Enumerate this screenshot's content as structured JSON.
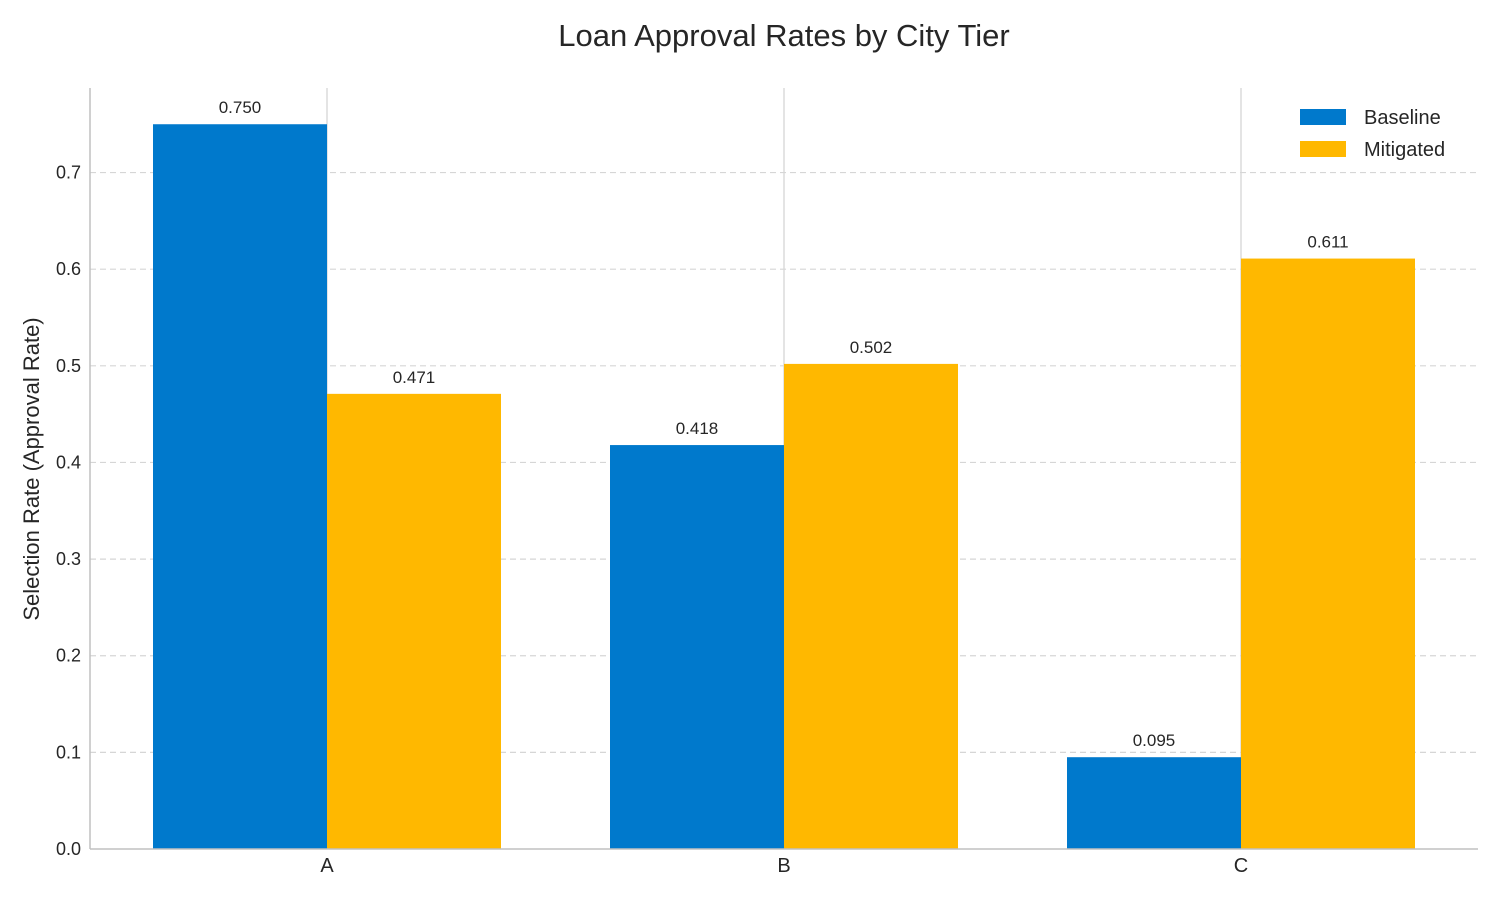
{
  "chart_data": {
    "type": "bar",
    "title": "Loan Approval Rates by City Tier",
    "xlabel": "",
    "ylabel": "Selection Rate (Approval Rate)",
    "categories": [
      "A",
      "B",
      "C"
    ],
    "series": [
      {
        "name": "Baseline",
        "values": [
          0.75,
          0.418,
          0.095
        ],
        "labels": [
          "0.750",
          "0.418",
          "0.095"
        ],
        "color": "#0079CC"
      },
      {
        "name": "Mitigated",
        "values": [
          0.471,
          0.502,
          0.611
        ],
        "labels": [
          "0.471",
          "0.502",
          "0.611"
        ],
        "color": "#FFB800"
      }
    ],
    "ylim": [
      0,
      0.7875
    ],
    "yticks": [
      "0.0",
      "0.1",
      "0.2",
      "0.3",
      "0.4",
      "0.5",
      "0.6",
      "0.7"
    ],
    "grid": {
      "y": "dashed",
      "x": "solid at categories"
    },
    "legend": "top-right"
  }
}
